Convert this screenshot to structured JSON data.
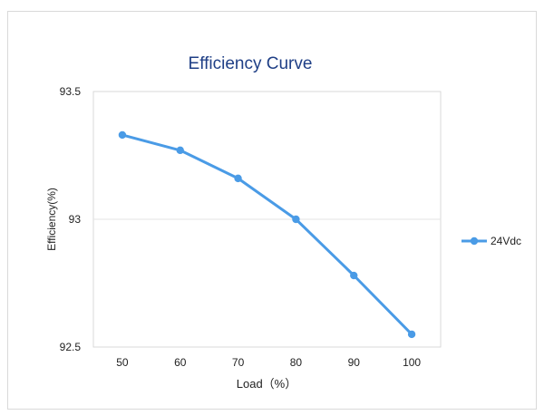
{
  "colors": {
    "series": "#4a9be6",
    "title": "#1f3f86",
    "gridline": "#e3e3e3",
    "plot_border": "#d9d9d9",
    "text": "#222222"
  },
  "chart_data": {
    "type": "line",
    "title": "Efficiency Curve",
    "xlabel": "Load（%）",
    "ylabel": "Efficiency(%)",
    "categories": [
      "50",
      "60",
      "70",
      "80",
      "90",
      "100"
    ],
    "series": [
      {
        "name": "24Vdc",
        "values": [
          93.33,
          93.27,
          93.16,
          93.0,
          92.78,
          92.55
        ]
      }
    ],
    "ylim": [
      92.5,
      93.5
    ],
    "yticks": [
      "92.5",
      "93",
      "93.5"
    ],
    "grid": true,
    "legend": "right"
  }
}
